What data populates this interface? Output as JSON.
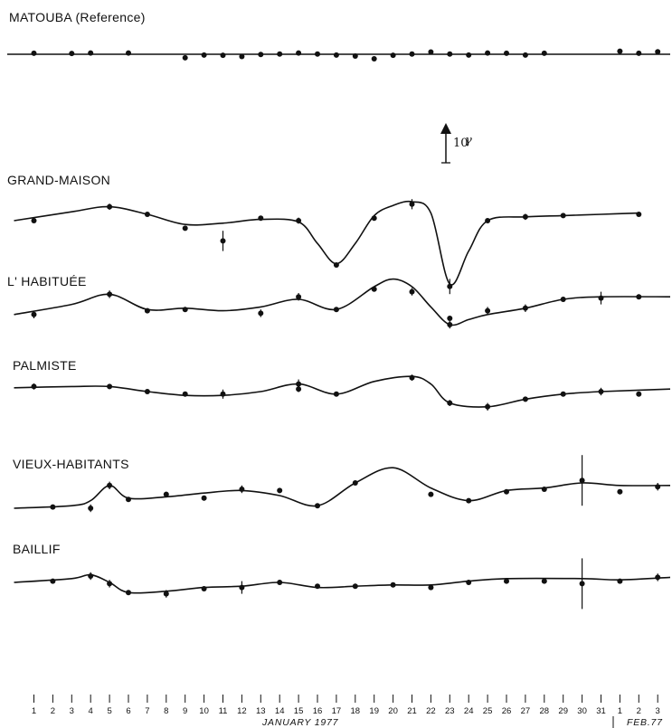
{
  "chart_data": {
    "type": "line",
    "x_unit_label": "JANUARY 1977",
    "x_unit_label_2": "FEB.77",
    "x_ticks": [
      "1",
      "2",
      "3",
      "4",
      "5",
      "6",
      "7",
      "8",
      "9",
      "10",
      "11",
      "12",
      "13",
      "14",
      "15",
      "16",
      "17",
      "18",
      "19",
      "20",
      "21",
      "22",
      "23",
      "24",
      "25",
      "26",
      "27",
      "28",
      "29",
      "30",
      "31",
      "1",
      "2",
      "3"
    ],
    "scale_bar": {
      "label": "10",
      "symbol": "γ",
      "value": 10,
      "unit": "gamma"
    },
    "series": [
      {
        "name": "MATOUBA (Reference)",
        "curve": [
          [
            1,
            0
          ],
          [
            34,
            0
          ]
        ],
        "points": [
          [
            1,
            0.4,
            0
          ],
          [
            3,
            0.3,
            0
          ],
          [
            4,
            0.5,
            0.5
          ],
          [
            6,
            0.5,
            0
          ],
          [
            9,
            -1.4,
            0
          ],
          [
            10,
            -0.3,
            0
          ],
          [
            11,
            -0.4,
            0
          ],
          [
            12,
            -0.9,
            0
          ],
          [
            13,
            -0.1,
            0
          ],
          [
            14,
            0.1,
            0
          ],
          [
            15,
            0.5,
            0
          ],
          [
            16,
            0.1,
            0
          ],
          [
            17,
            -0.3,
            0
          ],
          [
            18,
            -0.7,
            0
          ],
          [
            19,
            -1.8,
            0
          ],
          [
            20,
            -0.4,
            0
          ],
          [
            21,
            0.1,
            0
          ],
          [
            22,
            0.9,
            0
          ],
          [
            23,
            0.1,
            0
          ],
          [
            24,
            -0.3,
            0
          ],
          [
            25,
            0.5,
            0
          ],
          [
            26,
            0.4,
            0
          ],
          [
            27,
            -0.3,
            0
          ],
          [
            28,
            0.4,
            0
          ],
          [
            32,
            1.2,
            0
          ],
          [
            33,
            0.4,
            0
          ],
          [
            34,
            1.0,
            0
          ]
        ]
      },
      {
        "name": "GRAND-MAISON",
        "curve": [
          [
            1,
            0
          ],
          [
            3,
            3.5
          ],
          [
            5,
            5.5
          ],
          [
            7,
            2.5
          ],
          [
            9,
            -1.5
          ],
          [
            11,
            -1
          ],
          [
            13,
            0.5
          ],
          [
            15,
            -0.5
          ],
          [
            16,
            -9
          ],
          [
            17,
            -17
          ],
          [
            18,
            -9
          ],
          [
            19,
            2
          ],
          [
            20,
            6
          ],
          [
            21,
            7.5
          ],
          [
            22,
            3
          ],
          [
            23,
            -25
          ],
          [
            24,
            -12
          ],
          [
            25,
            0
          ],
          [
            27,
            1.5
          ],
          [
            29,
            2
          ],
          [
            31,
            2.5
          ],
          [
            33,
            3
          ]
        ],
        "points": [
          [
            1,
            0,
            0.8
          ],
          [
            5,
            5.5,
            1.2
          ],
          [
            7,
            2.5,
            0.8
          ],
          [
            9,
            -3.0,
            0.8
          ],
          [
            11,
            -8.0,
            4.0
          ],
          [
            13,
            1.0,
            0.8
          ],
          [
            15,
            0.0,
            1.2
          ],
          [
            17,
            -17.5,
            0
          ],
          [
            19,
            1.0,
            0
          ],
          [
            21,
            6.5,
            2.0
          ],
          [
            23,
            -26.0,
            3.0
          ],
          [
            25,
            0.0,
            0
          ],
          [
            27,
            1.5,
            1.2
          ],
          [
            29,
            2.0,
            0.8
          ],
          [
            33,
            2.5,
            0
          ]
        ]
      },
      {
        "name": "L' HABITUÉE",
        "curve": [
          [
            1,
            -1
          ],
          [
            3,
            3
          ],
          [
            5,
            7
          ],
          [
            7,
            1
          ],
          [
            9,
            1.5
          ],
          [
            11,
            0.5
          ],
          [
            13,
            2
          ],
          [
            15,
            5
          ],
          [
            17,
            1
          ],
          [
            19,
            10
          ],
          [
            20,
            13
          ],
          [
            21,
            10
          ],
          [
            22,
            2
          ],
          [
            23,
            -5
          ],
          [
            24,
            -3
          ],
          [
            25,
            -1
          ],
          [
            27,
            1.5
          ],
          [
            29,
            5
          ],
          [
            31,
            6
          ],
          [
            34,
            6
          ]
        ],
        "points": [
          [
            1,
            -1,
            1.5
          ],
          [
            5,
            7,
            1.5
          ],
          [
            7,
            0.5,
            1.0
          ],
          [
            9,
            1.0,
            0.8
          ],
          [
            13,
            -0.5,
            1.5
          ],
          [
            15,
            6.0,
            1.5
          ],
          [
            17,
            1.0,
            0
          ],
          [
            19,
            9.0,
            0
          ],
          [
            21,
            8.0,
            1.5
          ],
          [
            23,
            -2.5,
            0
          ],
          [
            23,
            -5.0,
            1.5
          ],
          [
            25,
            0.5,
            1.5
          ],
          [
            27,
            1.5,
            1.5
          ],
          [
            29,
            5.0,
            1.0
          ],
          [
            31,
            5.5,
            2.5
          ],
          [
            33,
            6.0,
            1.0
          ]
        ]
      },
      {
        "name": "PALMISTE",
        "curve": [
          [
            1,
            1.5
          ],
          [
            3,
            2
          ],
          [
            5,
            2
          ],
          [
            7,
            0
          ],
          [
            9,
            -1.5
          ],
          [
            11,
            -1.5
          ],
          [
            13,
            0
          ],
          [
            15,
            3
          ],
          [
            17,
            -1
          ],
          [
            19,
            4
          ],
          [
            21,
            6
          ],
          [
            22,
            3
          ],
          [
            23,
            -4.5
          ],
          [
            25,
            -6
          ],
          [
            27,
            -3
          ],
          [
            29,
            -1
          ],
          [
            31,
            0
          ],
          [
            34,
            1
          ]
        ],
        "points": [
          [
            1,
            2,
            1.2
          ],
          [
            5,
            2,
            1.0
          ],
          [
            7,
            0,
            0
          ],
          [
            9,
            -1,
            0
          ],
          [
            11,
            -1,
            1.8
          ],
          [
            15,
            3,
            1.8
          ],
          [
            15,
            1,
            1.2
          ],
          [
            17,
            -1,
            0
          ],
          [
            21,
            5.5,
            1.2
          ],
          [
            23,
            -4.5,
            1.2
          ],
          [
            25,
            -6,
            1.5
          ],
          [
            27,
            -3,
            1.0
          ],
          [
            29,
            -1,
            0
          ],
          [
            31,
            0,
            1.5
          ],
          [
            33,
            -1,
            0
          ]
        ]
      },
      {
        "name": "VIEUX-HABITANTS",
        "curve": [
          [
            1,
            -5
          ],
          [
            3,
            -4
          ],
          [
            4,
            -2
          ],
          [
            5,
            4
          ],
          [
            6,
            -1
          ],
          [
            8,
            -0.5
          ],
          [
            10,
            1
          ],
          [
            12,
            2
          ],
          [
            14,
            0
          ],
          [
            16,
            -4
          ],
          [
            18,
            5
          ],
          [
            20,
            11
          ],
          [
            22,
            3
          ],
          [
            24,
            -2
          ],
          [
            26,
            2
          ],
          [
            28,
            3
          ],
          [
            30,
            5
          ],
          [
            32,
            4
          ],
          [
            34,
            4
          ]
        ],
        "points": [
          [
            2,
            -4.5,
            0
          ],
          [
            4,
            -5.0,
            1.5
          ],
          [
            5,
            4.0,
            1.5
          ],
          [
            6,
            -1.5,
            0
          ],
          [
            8,
            0.5,
            1.0
          ],
          [
            10,
            -1.0,
            1.0
          ],
          [
            12,
            2.5,
            1.5
          ],
          [
            14,
            2.0,
            1.0
          ],
          [
            16,
            -4.0,
            0
          ],
          [
            18,
            5.0,
            0
          ],
          [
            22,
            0.5,
            0
          ],
          [
            24,
            -2.0,
            0
          ],
          [
            26,
            1.5,
            0
          ],
          [
            28,
            2.5,
            0
          ],
          [
            30,
            6.0,
            10.0
          ],
          [
            32,
            1.5,
            1.0
          ],
          [
            34,
            3.5,
            1.5
          ]
        ]
      },
      {
        "name": "BAILLIF",
        "curve": [
          [
            1,
            0
          ],
          [
            3,
            1.5
          ],
          [
            4,
            3
          ],
          [
            5,
            0
          ],
          [
            6,
            -4
          ],
          [
            8,
            -3.5
          ],
          [
            10,
            -2
          ],
          [
            12,
            -1.5
          ],
          [
            14,
            0
          ],
          [
            16,
            -2
          ],
          [
            18,
            -1.5
          ],
          [
            20,
            -1
          ],
          [
            22,
            -1
          ],
          [
            24,
            0.5
          ],
          [
            26,
            1.5
          ],
          [
            30,
            1.5
          ],
          [
            32,
            1
          ],
          [
            34,
            2
          ]
        ],
        "points": [
          [
            2,
            0.5,
            0
          ],
          [
            4,
            2.5,
            1.5
          ],
          [
            5,
            -0.5,
            1.5
          ],
          [
            6,
            -4.0,
            0
          ],
          [
            8,
            -4.5,
            1.5
          ],
          [
            10,
            -2.5,
            0
          ],
          [
            12,
            -2.0,
            2.5
          ],
          [
            14,
            0.0,
            1.0
          ],
          [
            16,
            -1.5,
            0
          ],
          [
            18,
            -1.5,
            1.0
          ],
          [
            20,
            -1.0,
            0
          ],
          [
            22,
            -2.0,
            0
          ],
          [
            24,
            0.0,
            1.0
          ],
          [
            26,
            0.5,
            0
          ],
          [
            28,
            0.5,
            0
          ],
          [
            30,
            -0.5,
            10.0
          ],
          [
            32,
            0.5,
            0
          ],
          [
            34,
            2.0,
            1.5
          ]
        ]
      }
    ]
  }
}
